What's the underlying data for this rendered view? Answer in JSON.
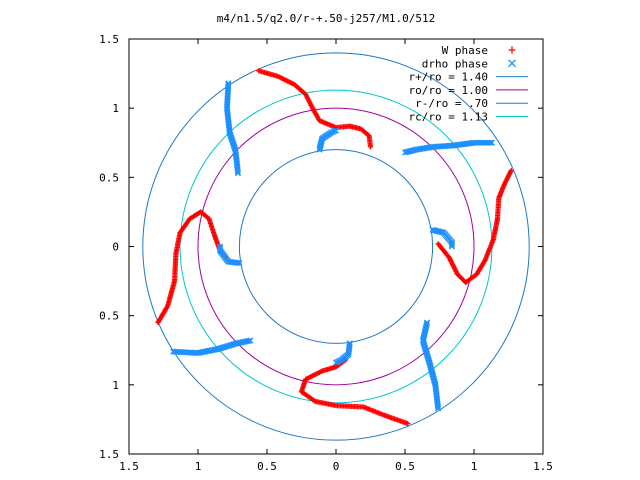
{
  "chart_data": {
    "type": "scatter",
    "title": "m4/n1.5/q2.0/r-+.50-j257/M1.0/512",
    "xlabel": "",
    "ylabel": "",
    "xlim": [
      -1.5,
      1.5
    ],
    "ylim": [
      -1.5,
      1.5
    ],
    "x_ticks": [
      "1.5",
      "1",
      "0.5",
      "0",
      "0.5",
      "1",
      "1.5"
    ],
    "y_ticks": [
      "1.5",
      "1",
      "0.5",
      "0",
      "0.5",
      "1",
      "1.5"
    ],
    "grid": false,
    "legend_position": "top-right",
    "series": [
      {
        "name": "W phase",
        "type": "scatter",
        "marker": "+",
        "color": "#ff0000",
        "arms": [
          [
            [
              -0.56,
              1.27
            ],
            [
              -0.42,
              1.23
            ],
            [
              -0.3,
              1.17
            ],
            [
              -0.22,
              1.1
            ],
            [
              -0.18,
              1.02
            ],
            [
              -0.12,
              0.91
            ],
            [
              0.0,
              0.86
            ],
            [
              0.1,
              0.87
            ],
            [
              0.18,
              0.85
            ],
            [
              0.24,
              0.8
            ],
            [
              0.25,
              0.72
            ]
          ],
          [
            [
              1.27,
              0.55
            ],
            [
              1.22,
              0.45
            ],
            [
              1.18,
              0.35
            ],
            [
              1.17,
              0.2
            ],
            [
              1.14,
              0.05
            ],
            [
              1.08,
              -0.1
            ],
            [
              1.02,
              -0.2
            ],
            [
              0.94,
              -0.26
            ],
            [
              0.88,
              -0.2
            ],
            [
              0.82,
              -0.08
            ],
            [
              0.74,
              0.02
            ]
          ],
          [
            [
              0.52,
              -1.28
            ],
            [
              0.35,
              -1.22
            ],
            [
              0.2,
              -1.16
            ],
            [
              0.0,
              -1.15
            ],
            [
              -0.15,
              -1.12
            ],
            [
              -0.25,
              -1.05
            ],
            [
              -0.22,
              -0.96
            ],
            [
              -0.1,
              -0.9
            ],
            [
              0.0,
              -0.87
            ],
            [
              0.07,
              -0.82
            ]
          ],
          [
            [
              -1.29,
              -0.55
            ],
            [
              -1.22,
              -0.43
            ],
            [
              -1.17,
              -0.25
            ],
            [
              -1.16,
              -0.05
            ],
            [
              -1.13,
              0.1
            ],
            [
              -1.06,
              0.2
            ],
            [
              -0.98,
              0.25
            ],
            [
              -0.92,
              0.2
            ],
            [
              -0.88,
              0.08
            ],
            [
              -0.84,
              -0.03
            ],
            [
              -0.8,
              -0.08
            ]
          ]
        ]
      },
      {
        "name": "drho phase",
        "type": "scatter",
        "marker": "x",
        "color": "#1e90ff",
        "arms": [
          [
            [
              -0.78,
              1.18
            ],
            [
              -0.79,
              1.0
            ],
            [
              -0.77,
              0.82
            ],
            [
              -0.73,
              0.7
            ],
            [
              -0.72,
              0.62
            ],
            [
              -0.71,
              0.53
            ]
          ],
          [
            [
              1.13,
              0.75
            ],
            [
              1.0,
              0.75
            ],
            [
              0.85,
              0.73
            ],
            [
              0.7,
              0.72
            ],
            [
              0.58,
              0.7
            ],
            [
              0.5,
              0.68
            ]
          ],
          [
            [
              0.74,
              -1.17
            ],
            [
              0.72,
              -1.0
            ],
            [
              0.68,
              -0.85
            ],
            [
              0.63,
              -0.68
            ],
            [
              0.66,
              -0.55
            ]
          ],
          [
            [
              -1.18,
              -0.76
            ],
            [
              -1.0,
              -0.77
            ],
            [
              -0.85,
              -0.74
            ],
            [
              -0.72,
              -0.7
            ],
            [
              -0.62,
              -0.68
            ]
          ],
          [
            [
              -0.12,
              0.7
            ],
            [
              -0.1,
              0.78
            ],
            [
              -0.04,
              0.82
            ],
            [
              0.0,
              0.84
            ]
          ],
          [
            [
              0.7,
              0.12
            ],
            [
              0.78,
              0.1
            ],
            [
              0.84,
              0.03
            ],
            [
              0.84,
              0.0
            ]
          ],
          [
            [
              0.1,
              -0.7
            ],
            [
              0.09,
              -0.78
            ],
            [
              0.04,
              -0.82
            ],
            [
              0.0,
              -0.84
            ]
          ],
          [
            [
              -0.7,
              -0.12
            ],
            [
              -0.78,
              -0.11
            ],
            [
              -0.84,
              -0.03
            ],
            [
              -0.84,
              0.0
            ]
          ]
        ]
      },
      {
        "name": "r+/ro = 1.40",
        "type": "circle",
        "radius": 1.4,
        "color": "#1e78c8"
      },
      {
        "name": "ro/ro = 1.00",
        "type": "circle",
        "radius": 1.0,
        "color": "#a000a0"
      },
      {
        "name": "r-/ro = .70",
        "type": "circle",
        "radius": 0.7,
        "color": "#1e78c8"
      },
      {
        "name": "rc/ro = 1.13",
        "type": "circle",
        "radius": 1.13,
        "color": "#00c8c8"
      }
    ]
  }
}
